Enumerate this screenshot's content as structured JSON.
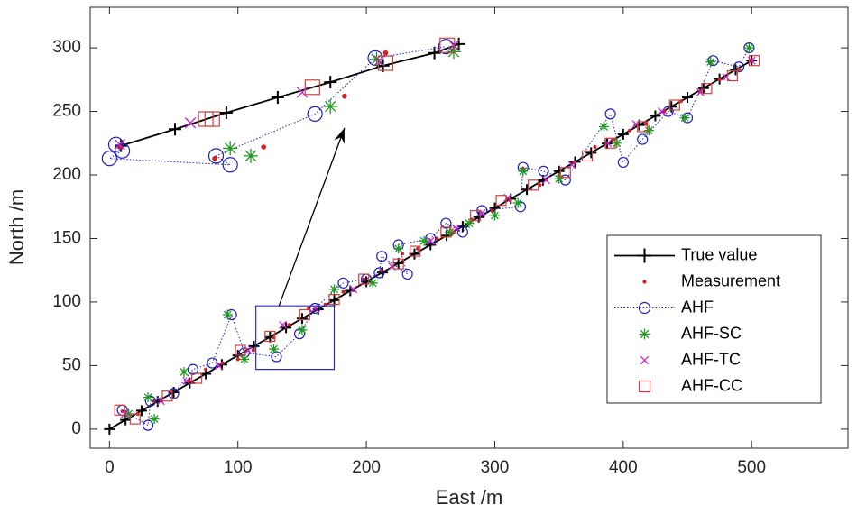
{
  "chart_data": {
    "type": "scatter",
    "xlabel": "East /m",
    "ylabel": "North /m",
    "xlim": [
      -15,
      575
    ],
    "ylim": [
      -15,
      332
    ],
    "xticks": [
      0,
      100,
      200,
      300,
      400,
      500
    ],
    "yticks": [
      0,
      50,
      100,
      150,
      200,
      250,
      300
    ],
    "grid": false,
    "legend": "lower right",
    "series": [
      {
        "name": "True value",
        "color": "#000000",
        "marker": "plus",
        "line": "solid",
        "x": [
          0,
          12.5,
          25,
          37.5,
          50,
          62.5,
          75,
          87.5,
          100,
          112.5,
          125,
          137.5,
          150,
          162.5,
          175,
          187.5,
          200,
          212.5,
          225,
          237.5,
          250,
          262.5,
          275,
          287.5,
          300,
          312.5,
          325,
          337.5,
          350,
          362.5,
          375,
          387.5,
          400,
          412.5,
          425,
          437.5,
          450,
          462.5,
          475,
          487.5,
          500
        ],
        "values": [
          0,
          7.3,
          14.5,
          21.8,
          29,
          36.3,
          43.5,
          50.8,
          58,
          65.3,
          72.5,
          79.8,
          87,
          94.3,
          101.5,
          108.8,
          116,
          123.3,
          130.5,
          137.8,
          145,
          152.3,
          159.5,
          166.8,
          174,
          181.3,
          188.5,
          195.8,
          203,
          210.3,
          217.5,
          224.8,
          232,
          239.3,
          246.5,
          253.8,
          261,
          268.3,
          275.5,
          282.8,
          290
        ]
      },
      {
        "name": "Measurement",
        "color": "#d62020",
        "marker": "dot",
        "line": "none",
        "x": [
          10,
          22,
          35,
          48,
          62,
          75,
          88,
          100,
          112,
          128,
          140,
          155,
          168,
          182,
          198,
          212,
          228,
          240,
          255,
          268,
          282,
          298,
          312,
          322,
          335,
          350,
          362,
          378,
          392,
          405,
          418,
          432,
          445,
          460,
          475,
          490,
          500
        ],
        "values": [
          14,
          12,
          22,
          30,
          38,
          47,
          52,
          55,
          62,
          72,
          82,
          95,
          98,
          108,
          118,
          125,
          138,
          142,
          150,
          155,
          165,
          172,
          180,
          205,
          192,
          200,
          210,
          222,
          228,
          235,
          240,
          250,
          258,
          266,
          275,
          283,
          290
        ]
      },
      {
        "name": "AHF",
        "color": "#1f1fbf",
        "marker": "circle",
        "line": "dotted",
        "x": [
          10,
          30,
          32,
          50,
          65,
          80,
          95,
          105,
          130,
          148,
          160,
          182,
          200,
          210,
          212,
          232,
          225,
          250,
          262,
          275,
          290,
          320,
          322,
          338,
          355,
          390,
          400,
          415,
          435,
          450,
          470,
          490,
          498
        ],
        "values": [
          15,
          3,
          22,
          28,
          47,
          52,
          90,
          60,
          57,
          75,
          95,
          115,
          118,
          123,
          136,
          122,
          145,
          150,
          162,
          155,
          172,
          175,
          206,
          203,
          196,
          248,
          210,
          228,
          250,
          245,
          290,
          285,
          300
        ]
      },
      {
        "name": "AHF-SC",
        "color": "#1f9a1f",
        "marker": "star",
        "line": "none",
        "x": [
          15,
          35,
          30,
          58,
          92,
          105,
          128,
          150,
          175,
          205,
          225,
          245,
          265,
          280,
          300,
          318,
          322,
          350,
          385,
          395,
          420,
          448,
          468,
          498
        ],
        "values": [
          12,
          8,
          25,
          45,
          90,
          55,
          63,
          78,
          110,
          115,
          142,
          148,
          155,
          162,
          168,
          178,
          203,
          197,
          238,
          225,
          235,
          245,
          289,
          300
        ]
      },
      {
        "name": "AHF-TC",
        "color": "#d020d0",
        "marker": "x",
        "line": "none",
        "x": [
          12,
          40,
          60,
          85,
          108,
          135,
          160,
          190,
          220,
          250,
          270,
          290,
          310,
          340,
          360,
          388,
          410,
          430,
          460,
          480,
          500
        ],
        "values": [
          12,
          22,
          38,
          50,
          62,
          82,
          95,
          110,
          128,
          148,
          158,
          170,
          182,
          196,
          208,
          225,
          240,
          250,
          265,
          277,
          290
        ]
      },
      {
        "name": "AHF-CC",
        "color": "#d04040",
        "marker": "square",
        "line": "none",
        "x": [
          8,
          20,
          45,
          68,
          102,
          125,
          152,
          175,
          198,
          225,
          238,
          262,
          285,
          305,
          330,
          355,
          372,
          390,
          415,
          440,
          465,
          485,
          502
        ],
        "values": [
          15,
          8,
          26,
          40,
          62,
          73,
          90,
          102,
          118,
          130,
          140,
          155,
          168,
          180,
          192,
          202,
          215,
          225,
          238,
          255,
          268,
          278,
          290
        ]
      }
    ],
    "inset": [
      {
        "x": [
          9,
          51,
          91,
          131,
          172,
          213,
          253,
          272
        ],
        "values": [
          223,
          236,
          249,
          261,
          273,
          286,
          296,
          303
        ]
      },
      {
        "x": [
          8,
          82,
          120,
          183,
          215
        ],
        "values": [
          222,
          213,
          222,
          262,
          296
        ]
      },
      {
        "x": [
          5,
          10,
          0,
          94,
          83,
          160,
          207,
          262
        ],
        "values": [
          224,
          219,
          213,
          208,
          215,
          248,
          292,
          301
        ]
      },
      {
        "x": [
          94,
          110,
          172,
          208,
          268
        ],
        "values": [
          221,
          215,
          254,
          291,
          297
        ]
      },
      {
        "x": [
          8,
          63,
          150,
          210,
          268
        ],
        "values": [
          224,
          241,
          265,
          290,
          302
        ]
      },
      {
        "x": [
          75,
          80,
          158,
          215,
          263
        ],
        "values": [
          244,
          244,
          269,
          288,
          302
        ]
      }
    ],
    "zoom_box": {
      "x": [
        114,
        175
      ],
      "y": [
        47,
        97
      ]
    },
    "arrow": {
      "from": [
        132,
        97
      ],
      "to": [
        183,
        237
      ]
    }
  }
}
